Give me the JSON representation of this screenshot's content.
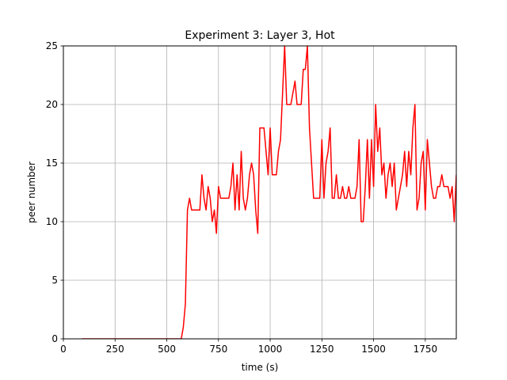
{
  "chart_data": {
    "type": "line",
    "title": "Experiment 3: Layer 3, Hot",
    "xlabel": "time (s)",
    "ylabel": "peer number",
    "xlim": [
      0,
      1900
    ],
    "ylim": [
      0,
      25
    ],
    "grid": true,
    "x_ticks": [
      0,
      250,
      500,
      750,
      1000,
      1250,
      1500,
      1750
    ],
    "y_ticks": [
      0,
      5,
      10,
      15,
      20,
      25
    ],
    "series": [
      {
        "color": "#ff0000",
        "points": [
          [
            90,
            0
          ],
          [
            200,
            0
          ],
          [
            400,
            0
          ],
          [
            560,
            0
          ],
          [
            570,
            0
          ],
          [
            580,
            1
          ],
          [
            590,
            3
          ],
          [
            600,
            11
          ],
          [
            610,
            12
          ],
          [
            620,
            11
          ],
          [
            630,
            11
          ],
          [
            640,
            11
          ],
          [
            660,
            11
          ],
          [
            670,
            14
          ],
          [
            680,
            12
          ],
          [
            690,
            11
          ],
          [
            700,
            13
          ],
          [
            710,
            12
          ],
          [
            720,
            10
          ],
          [
            730,
            11
          ],
          [
            740,
            9
          ],
          [
            750,
            13
          ],
          [
            760,
            12
          ],
          [
            780,
            12
          ],
          [
            800,
            12
          ],
          [
            810,
            13
          ],
          [
            820,
            15
          ],
          [
            830,
            11
          ],
          [
            840,
            14
          ],
          [
            850,
            11
          ],
          [
            860,
            16
          ],
          [
            870,
            12
          ],
          [
            880,
            11
          ],
          [
            890,
            12
          ],
          [
            900,
            14
          ],
          [
            910,
            15
          ],
          [
            920,
            14
          ],
          [
            930,
            11
          ],
          [
            940,
            9
          ],
          [
            950,
            18
          ],
          [
            960,
            18
          ],
          [
            970,
            18
          ],
          [
            980,
            16
          ],
          [
            990,
            14
          ],
          [
            1000,
            18
          ],
          [
            1010,
            14
          ],
          [
            1030,
            14
          ],
          [
            1040,
            16
          ],
          [
            1050,
            17
          ],
          [
            1060,
            21
          ],
          [
            1070,
            25
          ],
          [
            1080,
            20
          ],
          [
            1100,
            20
          ],
          [
            1110,
            21
          ],
          [
            1120,
            22
          ],
          [
            1130,
            20
          ],
          [
            1150,
            20
          ],
          [
            1160,
            23
          ],
          [
            1170,
            23
          ],
          [
            1180,
            25
          ],
          [
            1190,
            18
          ],
          [
            1200,
            15
          ],
          [
            1210,
            12
          ],
          [
            1240,
            12
          ],
          [
            1250,
            17
          ],
          [
            1260,
            12
          ],
          [
            1270,
            15
          ],
          [
            1280,
            16
          ],
          [
            1290,
            18
          ],
          [
            1300,
            12
          ],
          [
            1310,
            12
          ],
          [
            1320,
            14
          ],
          [
            1330,
            12
          ],
          [
            1340,
            12
          ],
          [
            1350,
            13
          ],
          [
            1360,
            12
          ],
          [
            1370,
            12
          ],
          [
            1380,
            13
          ],
          [
            1390,
            12
          ],
          [
            1410,
            12
          ],
          [
            1420,
            13
          ],
          [
            1430,
            17
          ],
          [
            1440,
            10
          ],
          [
            1450,
            10
          ],
          [
            1460,
            13
          ],
          [
            1470,
            17
          ],
          [
            1480,
            12
          ],
          [
            1490,
            17
          ],
          [
            1500,
            13
          ],
          [
            1510,
            20
          ],
          [
            1520,
            16
          ],
          [
            1530,
            18
          ],
          [
            1540,
            14
          ],
          [
            1550,
            15
          ],
          [
            1560,
            12
          ],
          [
            1570,
            14
          ],
          [
            1580,
            15
          ],
          [
            1590,
            13
          ],
          [
            1600,
            15
          ],
          [
            1610,
            11
          ],
          [
            1620,
            12
          ],
          [
            1640,
            14
          ],
          [
            1650,
            16
          ],
          [
            1660,
            13
          ],
          [
            1670,
            16
          ],
          [
            1680,
            14
          ],
          [
            1690,
            18
          ],
          [
            1700,
            20
          ],
          [
            1710,
            11
          ],
          [
            1720,
            12
          ],
          [
            1730,
            15
          ],
          [
            1740,
            16
          ],
          [
            1750,
            11
          ],
          [
            1760,
            17
          ],
          [
            1770,
            15
          ],
          [
            1780,
            13
          ],
          [
            1790,
            12
          ],
          [
            1800,
            12
          ],
          [
            1810,
            13
          ],
          [
            1820,
            13
          ],
          [
            1830,
            14
          ],
          [
            1840,
            13
          ],
          [
            1850,
            13
          ],
          [
            1860,
            13
          ],
          [
            1870,
            12
          ],
          [
            1880,
            13
          ],
          [
            1890,
            10
          ],
          [
            1900,
            14
          ]
        ]
      }
    ]
  }
}
